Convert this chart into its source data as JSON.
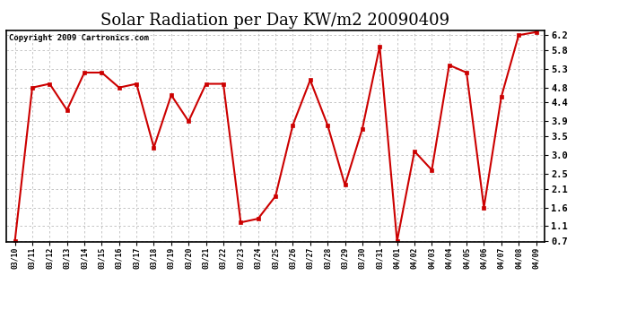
{
  "title": "Solar Radiation per Day KW/m2 20090409",
  "copyright": "Copyright 2009 Cartronics.com",
  "dates": [
    "03/10",
    "03/11",
    "03/12",
    "03/13",
    "03/14",
    "03/15",
    "03/16",
    "03/17",
    "03/18",
    "03/19",
    "03/20",
    "03/21",
    "03/22",
    "03/23",
    "03/24",
    "03/25",
    "03/26",
    "03/27",
    "03/28",
    "03/29",
    "03/30",
    "03/31",
    "04/01",
    "04/02",
    "04/03",
    "04/04",
    "04/05",
    "04/06",
    "04/07",
    "04/08",
    "04/09"
  ],
  "values": [
    0.7,
    4.8,
    4.9,
    4.2,
    5.2,
    5.2,
    4.8,
    4.9,
    3.2,
    4.6,
    3.9,
    4.9,
    4.9,
    1.2,
    1.3,
    1.9,
    3.8,
    5.0,
    3.8,
    2.2,
    3.7,
    5.9,
    0.7,
    3.1,
    2.6,
    5.4,
    5.2,
    1.6,
    4.55,
    6.2,
    6.28
  ],
  "line_color": "#cc0000",
  "marker_color": "#cc0000",
  "bg_color": "#ffffff",
  "grid_color": "#bbbbbb",
  "ylim_min": 0.7,
  "ylim_max": 6.28,
  "yticks": [
    0.7,
    1.1,
    1.6,
    2.1,
    2.5,
    3.0,
    3.5,
    3.9,
    4.4,
    4.8,
    5.3,
    5.8,
    6.2
  ],
  "title_fontsize": 13,
  "copyright_fontsize": 6.5
}
